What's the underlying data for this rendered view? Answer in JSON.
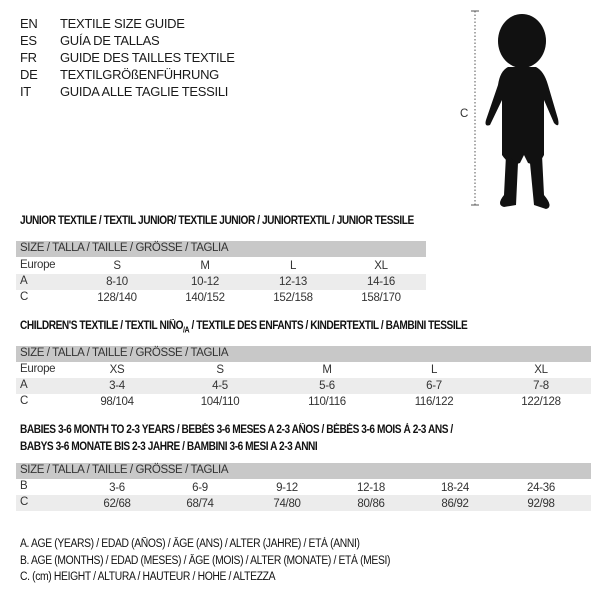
{
  "languages": [
    {
      "code": "EN",
      "title": "TEXTILE SIZE GUIDE"
    },
    {
      "code": "ES",
      "title": "GUÍA DE TALLAS"
    },
    {
      "code": "FR",
      "title": "GUIDE DES TAILLES TEXTILE"
    },
    {
      "code": "DE",
      "title": "TEXTILGRÖßENFÜHRUNG"
    },
    {
      "code": "IT",
      "title": "GUIDA ALLE TAGLIE TESSILI"
    }
  ],
  "figure": {
    "measure_label": "C",
    "icon": "child-silhouette-icon"
  },
  "size_header": "SIZE / TALLA / TAILLE / GRÖSSE / TAGLIA",
  "junior": {
    "title": "JUNIOR TEXTILE / TEXTIL JUNIOR/ TEXTILE JUNIOR / JUNIORTEXTIL / JUNIOR TESSILE",
    "rows": [
      {
        "label": "Europe",
        "values": [
          "S",
          "M",
          "L",
          "XL"
        ]
      },
      {
        "label": "A",
        "values": [
          "8-10",
          "10-12",
          "12-13",
          "14-16"
        ]
      },
      {
        "label": "C",
        "values": [
          "128/140",
          "140/152",
          "152/158",
          "158/170"
        ]
      }
    ]
  },
  "children": {
    "title": "CHILDREN'S TEXTILE / TEXTIL NIÑO",
    "title_sub": "/A",
    "title_rest": " / TEXTILE DES ENFANTS / KINDERTEXTIL / BAMBINI TESSILE",
    "rows": [
      {
        "label": "Europe",
        "values": [
          "XS",
          "S",
          "M",
          "L",
          "XL"
        ]
      },
      {
        "label": "A",
        "values": [
          "3-4",
          "4-5",
          "5-6",
          "6-7",
          "7-8"
        ]
      },
      {
        "label": "C",
        "values": [
          "98/104",
          "104/110",
          "110/116",
          "116/122",
          "122/128"
        ]
      }
    ]
  },
  "babies": {
    "title_line1": "BABIES 3-6 MONTH TO 2-3 YEARS / BEBÉS 3-6 MESES A 2-3 AÑOS / BÉBÉS 3-6 MOIS À 2-3 ANS /",
    "title_line2": "BABYS 3-6 MONATE BIS 2-3 JAHRE / BAMBINI 3-6 MESI A 2-3 ANNI",
    "rows": [
      {
        "label": "B",
        "values": [
          "3-6",
          "6-9",
          "9-12",
          "12-18",
          "18-24",
          "24-36"
        ]
      },
      {
        "label": "C",
        "values": [
          "62/68",
          "68/74",
          "74/80",
          "80/86",
          "86/92",
          "92/98"
        ]
      }
    ]
  },
  "legend": [
    "A. AGE (YEARS) / EDAD (AÑOS) / ÂGE (ANS) / ALTER (JAHRE) / ETÀ (ANNI)",
    "B. AGE (MONTHS) / EDAD (MESES) / ÂGE (MOIS) / ALTER (MONATE) / ETÀ (MESI)",
    "C. (cm) HEIGHT / ALTURA / HAUTEUR / HÖHE / ALTEZZA"
  ]
}
